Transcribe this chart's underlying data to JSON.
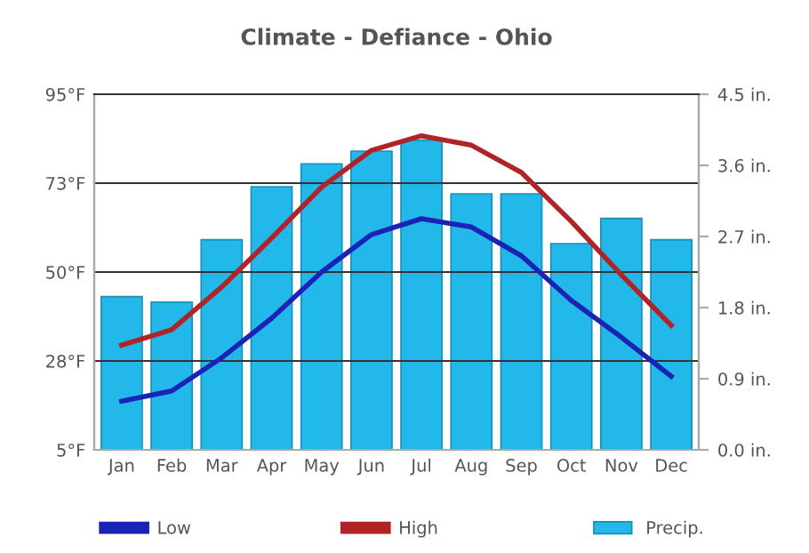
{
  "chart_data": {
    "type": "bar",
    "title": "Climate - Defiance - Ohio",
    "categories": [
      "Jan",
      "Feb",
      "Mar",
      "Apr",
      "May",
      "Jun",
      "Jul",
      "Aug",
      "Sep",
      "Oct",
      "Nov",
      "Dec"
    ],
    "series": [
      {
        "name": "Low",
        "type": "line",
        "color": "#1a23b5",
        "values": [
          17.3,
          19.9,
          28.3,
          38.3,
          50.0,
          59.5,
          63.5,
          61.4,
          54.1,
          42.8,
          33.5,
          23.6
        ]
      },
      {
        "name": "High",
        "type": "line",
        "color": "#b02428",
        "values": [
          31.5,
          35.4,
          46.2,
          58.6,
          71.5,
          80.8,
          84.5,
          82.1,
          75.2,
          62.8,
          49.3,
          36.5
        ]
      },
      {
        "name": "Precip.",
        "axis": "y2",
        "color": "#22b8ea",
        "values": [
          1.94,
          1.87,
          2.66,
          3.33,
          3.62,
          3.78,
          3.92,
          3.24,
          3.24,
          2.61,
          2.93,
          2.66
        ]
      }
    ],
    "ylim": [
      5,
      95
    ],
    "yticks": [
      {
        "value": 5,
        "label": "5°F"
      },
      {
        "value": 27.5,
        "label": "28°F"
      },
      {
        "value": 50,
        "label": "50°F"
      },
      {
        "value": 72.5,
        "label": "73°F"
      },
      {
        "value": 95,
        "label": "95°F"
      }
    ],
    "y2lim": [
      0,
      4.5
    ],
    "y2ticks": [
      {
        "value": 0,
        "label": "0.0 in."
      },
      {
        "value": 0.9,
        "label": "0.9 in."
      },
      {
        "value": 1.8,
        "label": "1.8 in."
      },
      {
        "value": 2.7,
        "label": "2.7 in."
      },
      {
        "value": 3.6,
        "label": "3.6 in."
      },
      {
        "value": 4.5,
        "label": "4.5 in."
      }
    ],
    "grid": "y",
    "legend": "bottom"
  }
}
